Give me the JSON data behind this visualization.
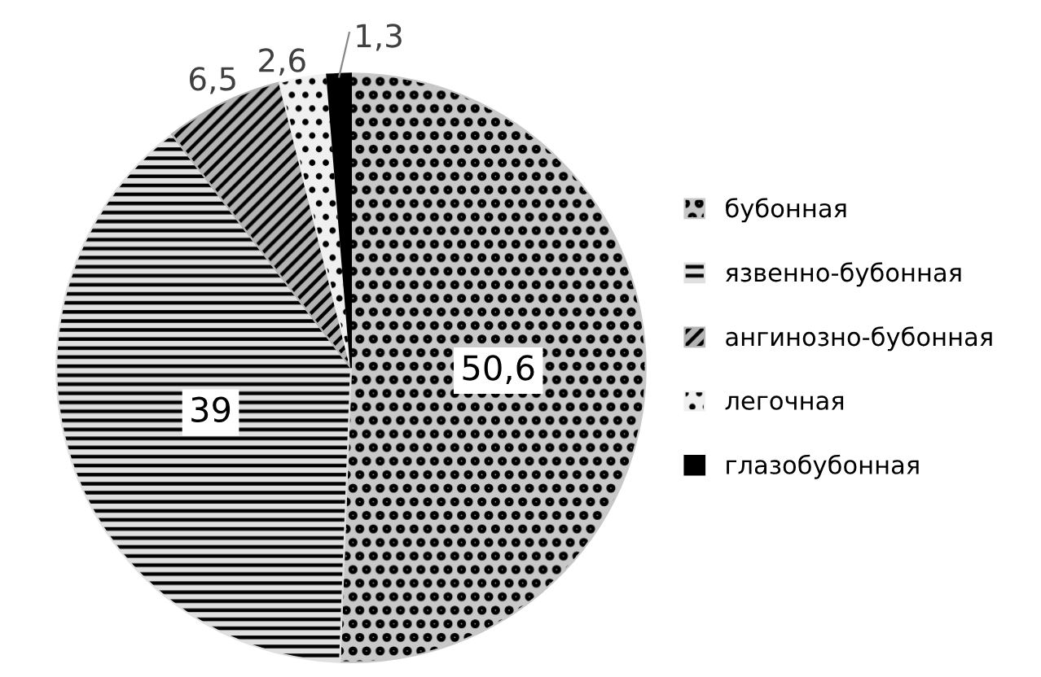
{
  "chart_data": {
    "type": "pie",
    "categories": [
      "бубонная",
      "язвенно-бубонная",
      "ангинозно-бубонная",
      "легочная",
      "глазобубонная"
    ],
    "values": [
      50.6,
      39,
      6.5,
      2.6,
      1.3
    ],
    "value_labels": [
      "50,6",
      "39",
      "6,5",
      "2,6",
      "1,3"
    ],
    "colors": [
      "#c8c8c8",
      "#e0e0e0",
      "#b4b4b4",
      "#f0f0f0",
      "#000000"
    ],
    "legend": "right"
  }
}
